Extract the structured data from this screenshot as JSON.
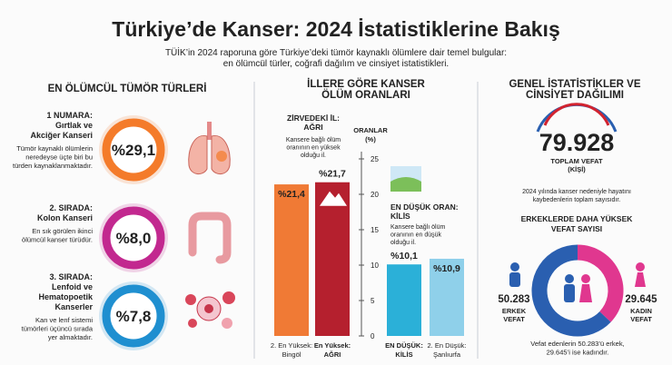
{
  "header": {
    "title": "Türkiye’de Kanser: 2024 İstatistiklerine Bakış",
    "subtitle": [
      "TÜİK’in 2024 raporuna göre Türkiye’deki tümör kaynaklı ölümlere dair temel bulgular:",
      "en ölümcül türler, coğrafi dağılım ve cinsiyet istatistikleri."
    ]
  },
  "deadliest": {
    "heading": "EN ÖLÜMCÜL TÜMÖR TÜRLERİ",
    "items": [
      {
        "rank": "1 NUMARA:",
        "name": [
          "Gırtlak ve",
          "Akciğer Kanseri"
        ],
        "description": [
          "Tümör kaynaklı ölümlerin",
          "neredeyse üçte biri bu",
          "türden kaynaklanmaktadır."
        ],
        "share": "%29,1",
        "color": "#f47b2a"
      },
      {
        "rank": "2. SIRADA:",
        "name": [
          "Kolon Kanseri"
        ],
        "description": [
          "En sık görülen ikinci",
          "ölümcül kanser türüdür."
        ],
        "share": "%8,0",
        "color": "#c2288f"
      },
      {
        "rank": "3. SIRADA:",
        "name": [
          "Lenfoid ve",
          "Hematopoetik",
          "Kanserler"
        ],
        "description": [
          "Kan ve lenf sistemi",
          "tümörleri üçüncü sırada",
          "yer almaktadır."
        ],
        "share": "%7,8",
        "color": "#1f8fd0"
      }
    ]
  },
  "provinces": {
    "heading": [
      "İLLERE GÖRE KANSER",
      "ÖLÜM ORANLARI"
    ],
    "chart_data": {
      "type": "bar",
      "y_label": [
        "ORANLAR",
        "(%)"
      ],
      "categories": [
        "2. En Yüksek: Bingöl",
        "En Yüksek: AĞRI",
        "EN DÜŞÜK: KİLİS",
        "2. En Düşük: Şanlıurfa"
      ],
      "values": [
        21.4,
        21.7,
        10.1,
        10.9
      ],
      "value_labels": [
        "%21,4",
        "%21,7",
        "%10,1",
        "%10,9"
      ],
      "colors": [
        "#f07a35",
        "#b5202e",
        "#2bb0d8",
        "#8fd0ea"
      ],
      "ylim": [
        0,
        25
      ],
      "yticks": [
        0,
        5,
        10,
        15,
        20,
        25
      ],
      "annotations": [
        {
          "title": [
            "ZİRVEDEKİ İL:",
            "AĞRI"
          ],
          "text": [
            "Kansere bağlı ölüm",
            "oranının en yüksek",
            "olduğu il."
          ]
        },
        {
          "title": [
            "EN DÜŞÜK ORAN:",
            "KİLİS"
          ],
          "text": [
            "Kansere bağlı ölüm",
            "oranının en düşük",
            "olduğu il."
          ]
        }
      ]
    }
  },
  "general": {
    "heading": [
      "GENEL İSTATİSTİKLER VE",
      "CİNSİYET DAĞILIMI"
    ],
    "total": "79.928",
    "total_label": [
      "TOPLAM VEFAT",
      "(KİŞİ)"
    ],
    "total_note": [
      "2024 yılında kanser nedeniyle hayatını",
      "kaybedenlerin toplam sayısıdır."
    ],
    "gender": {
      "heading": [
        "ERKEKLERDE DAHA YÜKSEK",
        "VEFAT SAYISI"
      ],
      "chart_data": {
        "type": "donut",
        "series": [
          {
            "name": "ERKEK VEFAT",
            "value": 50283,
            "value_label": "50.283",
            "color": "#2a5fb0"
          },
          {
            "name": "KADIN VEFAT",
            "value": 29645,
            "value_label": "29.645",
            "color": "#e0378f"
          }
        ]
      },
      "footer": [
        "Vefat edenlerin 50.283’ü erkek,",
        "29.645’i ise kadındır."
      ]
    }
  }
}
